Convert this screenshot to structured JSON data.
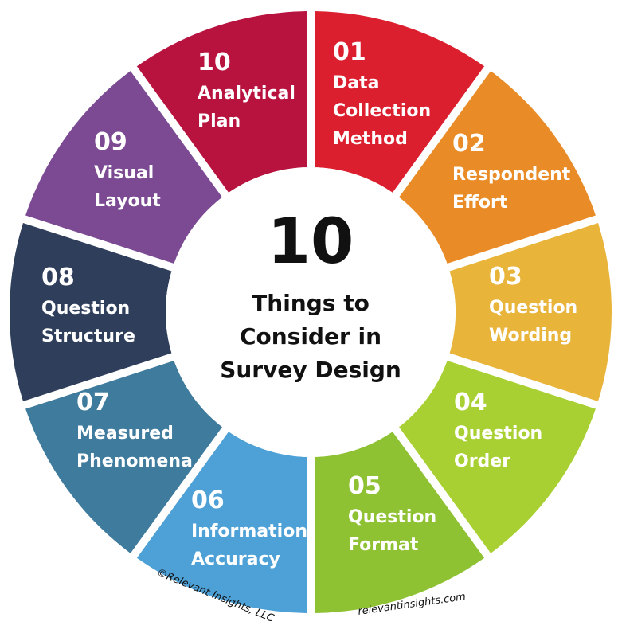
{
  "center": {
    "number": "10",
    "lines": [
      "Things to",
      "Consider in",
      "Survey Design"
    ]
  },
  "segments": [
    {
      "num": "01",
      "label": [
        "Data",
        "Collection",
        "Method"
      ],
      "color": "#DC1F2E"
    },
    {
      "num": "02",
      "label": [
        "Respondent",
        "Effort"
      ],
      "color": "#E98C27"
    },
    {
      "num": "03",
      "label": [
        "Question",
        "Wording"
      ],
      "color": "#E8B43A"
    },
    {
      "num": "04",
      "label": [
        "Question",
        "Order"
      ],
      "color": "#A9D032"
    },
    {
      "num": "05",
      "label": [
        "Question",
        "Format"
      ],
      "color": "#8FC233"
    },
    {
      "num": "06",
      "label": [
        "Information",
        "Accuracy"
      ],
      "color": "#4EA1D6"
    },
    {
      "num": "07",
      "label": [
        "Measured",
        "Phenomena"
      ],
      "color": "#3F7B9D"
    },
    {
      "num": "08",
      "label": [
        "Question",
        "Structure"
      ],
      "color": "#2F3F5B"
    },
    {
      "num": "09",
      "label": [
        "Visual",
        "Layout"
      ],
      "color": "#7B4A93"
    },
    {
      "num": "10",
      "label": [
        "Analytical",
        "Plan"
      ],
      "color": "#B8123F"
    }
  ],
  "credits": {
    "left": "©Relevant Insights, LLC",
    "right": "relevantinsights.com"
  }
}
